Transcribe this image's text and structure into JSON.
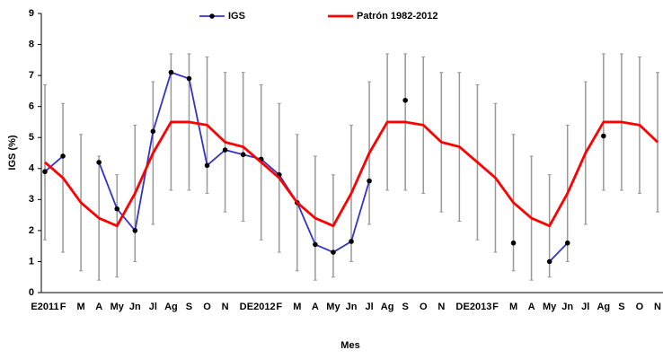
{
  "chart_data": {
    "type": "line",
    "x_label": "Mes",
    "y_label": "IGS (%)",
    "categories": [
      "E2011",
      "F",
      "M",
      "A",
      "My",
      "Jn",
      "Jl",
      "Ag",
      "S",
      "O",
      "N",
      "D",
      "E2012",
      "F",
      "M",
      "A",
      "My",
      "Jn",
      "Jl",
      "Ag",
      "S",
      "O",
      "N",
      "D",
      "E2013",
      "F",
      "M",
      "A",
      "My",
      "Jn",
      "Jl",
      "Ag",
      "S",
      "O",
      "N"
    ],
    "series": [
      {
        "name": "IGS",
        "color": "#3333cc",
        "marker": "circle",
        "values": [
          3.9,
          4.4,
          null,
          4.2,
          2.7,
          2.0,
          5.2,
          7.1,
          6.9,
          4.1,
          4.6,
          4.45,
          4.3,
          3.8,
          2.9,
          1.55,
          1.3,
          1.65,
          3.6,
          null,
          6.2,
          null,
          null,
          null,
          null,
          null,
          1.6,
          null,
          1.0,
          1.6,
          null,
          5.05,
          null,
          null,
          null
        ]
      },
      {
        "name": "Patrón 1982-2012",
        "color": "#ff0000",
        "values": [
          4.2,
          3.7,
          2.9,
          2.4,
          2.15,
          3.2,
          4.5,
          5.5,
          5.5,
          5.4,
          4.85,
          4.7,
          4.2,
          3.7,
          2.9,
          2.4,
          2.15,
          3.2,
          4.5,
          5.5,
          5.5,
          5.4,
          4.85,
          4.7,
          4.2,
          3.7,
          2.9,
          2.4,
          2.15,
          3.2,
          4.5,
          5.5,
          5.5,
          5.4,
          4.85
        ],
        "errors": [
          2.5,
          2.4,
          2.2,
          2.0,
          1.65,
          2.2,
          2.3,
          2.2,
          2.2,
          2.2,
          2.25,
          2.4,
          2.5,
          2.4,
          2.2,
          2.0,
          1.65,
          2.2,
          2.3,
          2.2,
          2.2,
          2.2,
          2.25,
          2.4,
          2.5,
          2.4,
          2.2,
          2.0,
          1.65,
          2.2,
          2.3,
          2.2,
          2.2,
          2.2,
          2.25
        ],
        "error_color": "#999999"
      }
    ],
    "ylim": [
      0,
      9
    ],
    "yticks": [
      0,
      1,
      2,
      3,
      4,
      5,
      6,
      7,
      8,
      9
    ],
    "grid": false,
    "legend": "top"
  }
}
